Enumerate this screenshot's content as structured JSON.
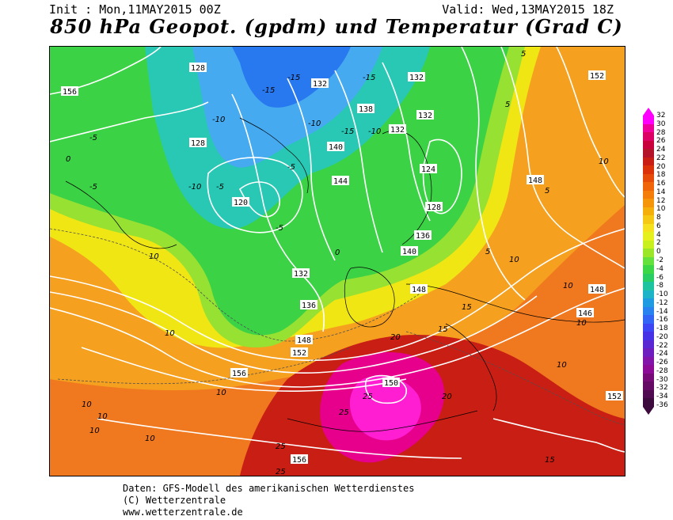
{
  "header": {
    "init": "Init : Mon,11MAY2015 00Z",
    "valid": "Valid: Wed,13MAY2015 18Z",
    "title": "850 hPa Geopot. (gpdm) und Temperatur (Grad C)"
  },
  "footer": {
    "line1": "Daten: GFS-Modell des amerikanischen Wetterdienstes",
    "line2": "(C) Wetterzentrale",
    "line3": "www.wetterzentrale.de"
  },
  "colorbar": {
    "levels": [
      "32",
      "30",
      "28",
      "26",
      "24",
      "22",
      "20",
      "18",
      "16",
      "14",
      "12",
      "10",
      "8",
      "6",
      "4",
      "2",
      "0",
      "-2",
      "-4",
      "-6",
      "-8",
      "-10",
      "-12",
      "-14",
      "-16",
      "-18",
      "-20",
      "-22",
      "-24",
      "-26",
      "-28",
      "-30",
      "-32",
      "-34",
      "-36"
    ],
    "colors": [
      "#ff00ff",
      "#f0009a",
      "#dc0064",
      "#c8003c",
      "#b4142a",
      "#c81e14",
      "#dc320a",
      "#e64b0a",
      "#f0640a",
      "#f57d0a",
      "#f5960a",
      "#f5af0a",
      "#f5c814",
      "#f5e11e",
      "#e6f01e",
      "#c8f01e",
      "#9be628",
      "#64e13c",
      "#3cd746",
      "#28cd64",
      "#1ec3a0",
      "#1eb4c8",
      "#1e9be1",
      "#2882f0",
      "#3264f5",
      "#3c46f5",
      "#4632e6",
      "#5a28d2",
      "#6e1ebe",
      "#8214aa",
      "#8c0a96",
      "#780a78",
      "#640a64",
      "#500a50",
      "#3c0a3c"
    ]
  },
  "map_labels": {
    "geopotential": [
      "156",
      "128",
      "132",
      "132",
      "138",
      "132",
      "132",
      "132",
      "128",
      "120",
      "124",
      "128",
      "136",
      "140",
      "144",
      "132",
      "140",
      "136",
      "140",
      "144",
      "148",
      "152",
      "152",
      "156",
      "156",
      "156",
      "150",
      "148",
      "140",
      "152",
      "146",
      "148",
      "148",
      "128",
      "136",
      "132",
      "140",
      "144"
    ],
    "temperature": [
      "-5",
      "-5",
      "-10",
      "-5",
      "-15",
      "-10",
      "-15",
      "-15",
      "-10",
      "-5",
      "-5",
      "-10",
      "-5",
      "-15",
      "-10",
      "-5",
      "-5",
      "-5",
      "-5",
      "-10",
      "-5",
      "0",
      "0",
      "0",
      "0",
      "0",
      "5",
      "5",
      "5",
      "5",
      "10",
      "10",
      "10",
      "10",
      "10",
      "10",
      "10",
      "10",
      "10",
      "10",
      "15",
      "15",
      "15",
      "15",
      "20",
      "20",
      "20",
      "25",
      "25",
      "25",
      "5",
      "10"
    ]
  }
}
